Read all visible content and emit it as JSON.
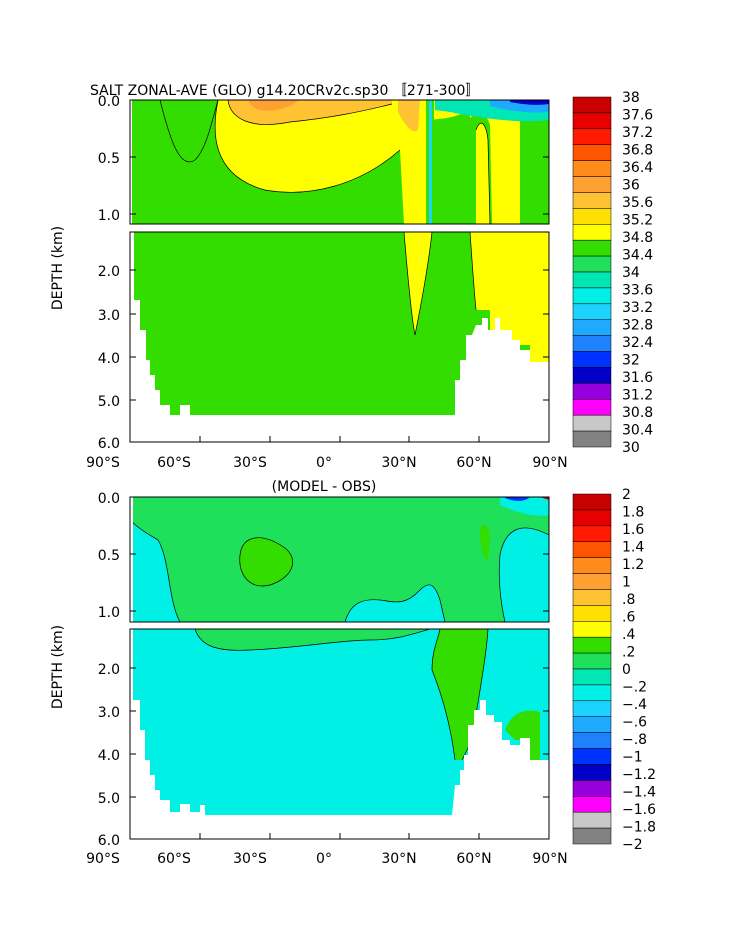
{
  "chart_data": [
    {
      "type": "heatmap",
      "title": "SALT ZONAL-AVE (GLO) g14.20CRv2c.sp30 〚271-300〛",
      "xlabel": "",
      "ylabel": "DEPTH (km)",
      "x_ticks": [
        "90°S",
        "60°S",
        "30°S",
        "0°",
        "30°N",
        "60°N",
        "90°N"
      ],
      "x_range": [
        -90,
        90
      ],
      "y_ticks_upper": [
        "0.0",
        "0.5",
        "1.0"
      ],
      "y_ticks_lower": [
        "2.0",
        "3.0",
        "4.0",
        "5.0",
        "6.0"
      ],
      "y_range": [
        0,
        6
      ],
      "axis_break_depth_km": [
        1.1,
        1.2
      ],
      "colorbar": {
        "labels": [
          "38",
          "37.6",
          "37.2",
          "36.8",
          "36.4",
          "36",
          "35.6",
          "35.2",
          "34.8",
          "34.4",
          "34",
          "33.6",
          "33.2",
          "32.8",
          "32.4",
          "32",
          "31.6",
          "31.2",
          "30.8",
          "30.4",
          "30"
        ],
        "colors": [
          "#c80000",
          "#e60000",
          "#ff1a00",
          "#ff5500",
          "#ff8c1a",
          "#ffa033",
          "#ffc233",
          "#ffe000",
          "#ffff00",
          "#33dd00",
          "#1ee05a",
          "#00e6b4",
          "#00f0e6",
          "#1ed2ff",
          "#1eaaff",
          "#1e82ff",
          "#0032ff",
          "#0000c8",
          "#9600dc",
          "#ff00ff",
          "#c8c8c8",
          "#828282"
        ]
      },
      "regions": [
        {
          "value_range": "34.4-34.8",
          "lat": [
            -78,
            52
          ],
          "depth_km": [
            0,
            5.4
          ]
        },
        {
          "value_range": "34.8-35.6",
          "lat": [
            -35,
            33
          ],
          "depth_km": [
            0,
            1.1
          ]
        },
        {
          "value_range": "35.2-35.6",
          "lat": [
            -25,
            30
          ],
          "depth_km": [
            0,
            0.3
          ]
        },
        {
          "value_range": "34.8-35.2",
          "lat": [
            32,
            90
          ],
          "depth_km": [
            0,
            4.1
          ]
        },
        {
          "value_range": "30-34.4",
          "lat": [
            40,
            90
          ],
          "depth_km": [
            0,
            0.1
          ]
        }
      ]
    },
    {
      "type": "heatmap",
      "title": "(MODEL - OBS)",
      "xlabel": "",
      "ylabel": "DEPTH (km)",
      "x_ticks": [
        "90°S",
        "60°S",
        "30°S",
        "0°",
        "30°N",
        "60°N",
        "90°N"
      ],
      "x_range": [
        -90,
        90
      ],
      "y_ticks_upper": [
        "0.0",
        "0.5",
        "1.0"
      ],
      "y_ticks_lower": [
        "2.0",
        "3.0",
        "4.0",
        "5.0",
        "6.0"
      ],
      "y_range": [
        0,
        6
      ],
      "axis_break_depth_km": [
        1.1,
        1.2
      ],
      "colorbar": {
        "labels": [
          "2",
          "1.8",
          "1.6",
          "1.4",
          "1.2",
          "1",
          ".8",
          ".6",
          ".4",
          ".2",
          "0",
          "−.2",
          "−.4",
          "−.6",
          "−.8",
          "−1",
          "−1.2",
          "−1.4",
          "−1.6",
          "−1.8",
          "−2"
        ],
        "colors": [
          "#c80000",
          "#e60000",
          "#ff1a00",
          "#ff5500",
          "#ff8c1a",
          "#ffa033",
          "#ffc233",
          "#ffe000",
          "#ffff00",
          "#33dd00",
          "#1ee05a",
          "#00e6b4",
          "#00f0e6",
          "#1ed2ff",
          "#1eaaff",
          "#1e82ff",
          "#0032ff",
          "#0000c8",
          "#9600dc",
          "#ff00ff",
          "#c8c8c8",
          "#828282"
        ]
      },
      "regions": [
        {
          "value_range": "0-0.2",
          "lat": [
            -78,
            90
          ],
          "depth_km": [
            0,
            1.1
          ]
        },
        {
          "value_range": "-0.2-0",
          "lat": [
            -78,
            52
          ],
          "depth_km": [
            1.2,
            5.4
          ]
        },
        {
          "value_range": "0-0.2",
          "lat": [
            45,
            63
          ],
          "depth_km": [
            1.2,
            4.1
          ]
        },
        {
          "value_range": "0.2-0.4",
          "lat": [
            -35,
            -15
          ],
          "depth_km": [
            0.2,
            0.6
          ]
        }
      ]
    }
  ]
}
